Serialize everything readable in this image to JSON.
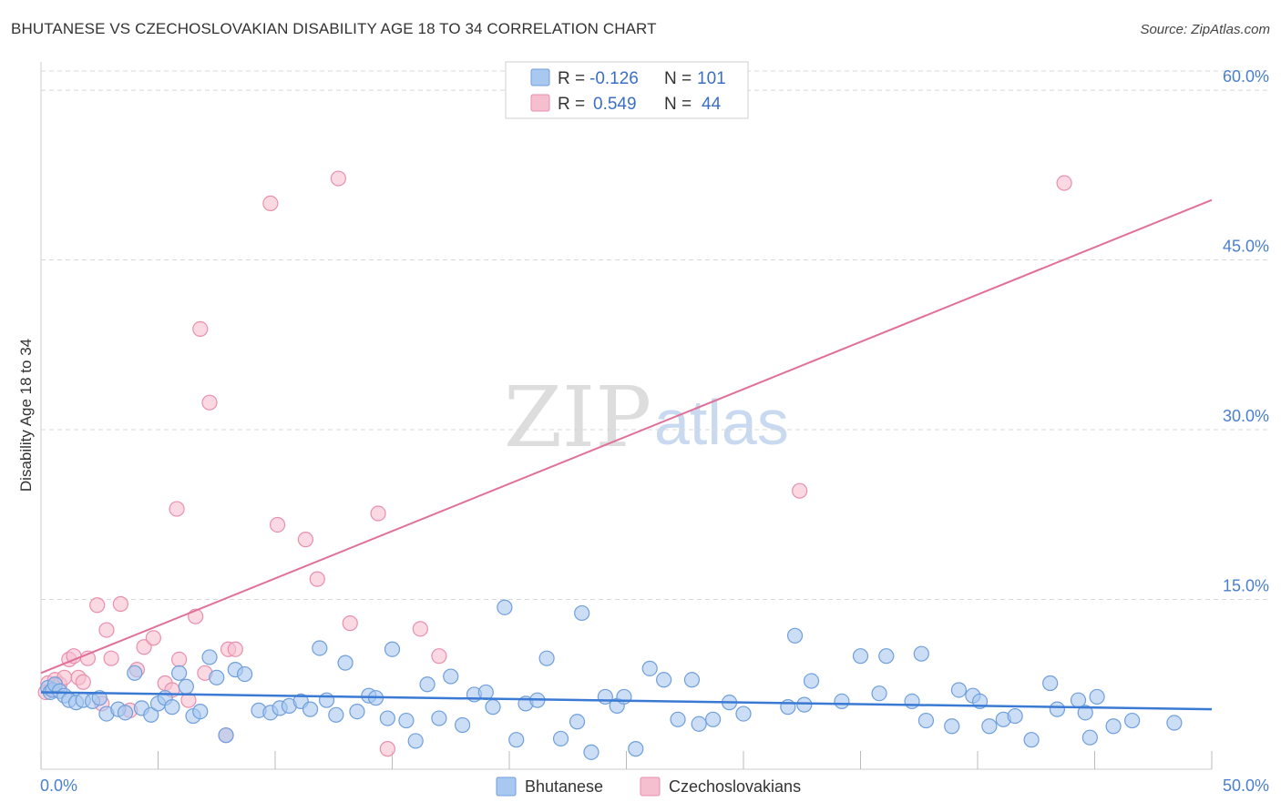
{
  "title": "BHUTANESE VS CZECHOSLOVAKIAN DISABILITY AGE 18 TO 34 CORRELATION CHART",
  "source": "Source: ZipAtlas.com",
  "watermark": {
    "zip": "ZIP",
    "atlas": "atlas"
  },
  "colors": {
    "blue_fill": "#a9c8ef",
    "blue_stroke": "#6f9fdc",
    "blue_line": "#3a7ad4",
    "pink_fill": "#f6bfd0",
    "pink_stroke": "#e98fae",
    "pink_line": "#e0709a",
    "grid": "#d8d8d8",
    "tick_text": "#4a7fcf"
  },
  "legend": {
    "rows": [
      {
        "r_label": "R = ",
        "r_value": "-0.126",
        "n_label": "N = ",
        "n_value": "101",
        "color": "blue"
      },
      {
        "r_label": "R = ",
        "r_value": "0.549",
        "n_label": "N = ",
        "n_value": "44",
        "color": "pink"
      }
    ]
  },
  "bottom_legend": {
    "items": [
      "Bhutanese",
      "Czechoslovakians"
    ]
  },
  "chart_data": {
    "type": "scatter",
    "title": "BHUTANESE VS CZECHOSLOVAKIAN DISABILITY AGE 18 TO 34 CORRELATION CHART",
    "xlabel": "",
    "ylabel": "Disability Age 18 to 34",
    "xlim": [
      0,
      50
    ],
    "ylim": [
      0,
      62.5
    ],
    "x_tick_labels": [
      "0.0%",
      "50.0%"
    ],
    "y_ticks": [
      15,
      30,
      45,
      60
    ],
    "y_tick_labels": [
      "15.0%",
      "30.0%",
      "45.0%",
      "60.0%"
    ],
    "series": [
      {
        "name": "Bhutanese",
        "color": "blue",
        "r": -0.126,
        "n": 101,
        "trend": {
          "x": [
            0,
            50
          ],
          "y": [
            6.8,
            5.3
          ]
        },
        "points": [
          [
            0.3,
            7.2
          ],
          [
            0.4,
            6.8
          ],
          [
            0.5,
            7.0
          ],
          [
            0.6,
            7.5
          ],
          [
            0.8,
            6.9
          ],
          [
            1.0,
            6.5
          ],
          [
            1.2,
            6.1
          ],
          [
            1.5,
            5.9
          ],
          [
            1.8,
            6.1
          ],
          [
            2.2,
            6.0
          ],
          [
            2.5,
            6.3
          ],
          [
            2.8,
            4.9
          ],
          [
            3.3,
            5.3
          ],
          [
            3.6,
            5.0
          ],
          [
            4.0,
            8.5
          ],
          [
            4.3,
            5.4
          ],
          [
            4.7,
            4.8
          ],
          [
            5.0,
            5.8
          ],
          [
            5.3,
            6.3
          ],
          [
            5.6,
            5.5
          ],
          [
            5.9,
            8.5
          ],
          [
            6.2,
            7.3
          ],
          [
            6.5,
            4.7
          ],
          [
            6.8,
            5.1
          ],
          [
            7.2,
            9.9
          ],
          [
            7.5,
            8.1
          ],
          [
            7.9,
            3.0
          ],
          [
            8.3,
            8.8
          ],
          [
            8.7,
            8.4
          ],
          [
            9.3,
            5.2
          ],
          [
            9.8,
            5.0
          ],
          [
            10.2,
            5.4
          ],
          [
            10.6,
            5.6
          ],
          [
            11.1,
            6.0
          ],
          [
            11.5,
            5.3
          ],
          [
            11.9,
            10.7
          ],
          [
            12.2,
            6.1
          ],
          [
            12.6,
            4.8
          ],
          [
            13.0,
            9.4
          ],
          [
            13.5,
            5.1
          ],
          [
            14.0,
            6.5
          ],
          [
            14.3,
            6.3
          ],
          [
            14.8,
            4.5
          ],
          [
            15.0,
            10.6
          ],
          [
            15.6,
            4.3
          ],
          [
            16.0,
            2.5
          ],
          [
            16.5,
            7.5
          ],
          [
            17.0,
            4.5
          ],
          [
            17.5,
            8.2
          ],
          [
            18.0,
            3.9
          ],
          [
            18.5,
            6.6
          ],
          [
            19.0,
            6.8
          ],
          [
            19.3,
            5.5
          ],
          [
            19.8,
            14.3
          ],
          [
            20.3,
            2.6
          ],
          [
            20.7,
            5.8
          ],
          [
            21.2,
            6.1
          ],
          [
            21.6,
            9.8
          ],
          [
            22.2,
            2.7
          ],
          [
            22.9,
            4.2
          ],
          [
            23.1,
            13.8
          ],
          [
            23.5,
            1.5
          ],
          [
            24.1,
            6.4
          ],
          [
            24.6,
            5.6
          ],
          [
            24.9,
            6.4
          ],
          [
            25.4,
            1.8
          ],
          [
            26.0,
            8.9
          ],
          [
            26.6,
            7.9
          ],
          [
            27.2,
            4.4
          ],
          [
            27.8,
            7.9
          ],
          [
            28.1,
            4.0
          ],
          [
            28.7,
            4.4
          ],
          [
            29.4,
            5.9
          ],
          [
            30.0,
            4.9
          ],
          [
            31.9,
            5.5
          ],
          [
            32.2,
            11.8
          ],
          [
            32.6,
            5.7
          ],
          [
            32.9,
            7.8
          ],
          [
            34.2,
            6.0
          ],
          [
            35.0,
            10.0
          ],
          [
            35.8,
            6.7
          ],
          [
            36.1,
            10.0
          ],
          [
            37.2,
            6.0
          ],
          [
            37.6,
            10.2
          ],
          [
            37.8,
            4.3
          ],
          [
            38.9,
            3.8
          ],
          [
            39.2,
            7.0
          ],
          [
            39.8,
            6.5
          ],
          [
            40.1,
            6.0
          ],
          [
            40.5,
            3.8
          ],
          [
            41.1,
            4.4
          ],
          [
            41.6,
            4.7
          ],
          [
            42.3,
            2.6
          ],
          [
            43.1,
            7.6
          ],
          [
            43.4,
            5.3
          ],
          [
            44.3,
            6.1
          ],
          [
            44.6,
            5.0
          ],
          [
            44.8,
            2.8
          ],
          [
            45.1,
            6.4
          ],
          [
            45.8,
            3.8
          ],
          [
            46.6,
            4.3
          ],
          [
            48.4,
            4.1
          ]
        ]
      },
      {
        "name": "Czechoslovakians",
        "color": "pink",
        "r": 0.549,
        "n": 44,
        "trend": {
          "x": [
            0,
            50
          ],
          "y": [
            8.5,
            50.3
          ]
        },
        "points": [
          [
            0.3,
            7.6
          ],
          [
            0.5,
            7.0
          ],
          [
            0.6,
            7.9
          ],
          [
            0.8,
            7.5
          ],
          [
            1.0,
            8.1
          ],
          [
            1.2,
            9.7
          ],
          [
            1.4,
            10.0
          ],
          [
            1.6,
            8.1
          ],
          [
            1.8,
            7.7
          ],
          [
            2.0,
            9.8
          ],
          [
            2.4,
            14.5
          ],
          [
            2.6,
            5.8
          ],
          [
            2.8,
            12.3
          ],
          [
            3.0,
            9.8
          ],
          [
            3.4,
            14.6
          ],
          [
            3.8,
            5.2
          ],
          [
            4.1,
            8.8
          ],
          [
            4.4,
            10.8
          ],
          [
            4.8,
            11.6
          ],
          [
            5.3,
            7.6
          ],
          [
            5.6,
            7.0
          ],
          [
            5.9,
            9.7
          ],
          [
            6.3,
            6.1
          ],
          [
            6.6,
            13.5
          ],
          [
            7.0,
            8.5
          ],
          [
            6.8,
            38.9
          ],
          [
            7.2,
            32.4
          ],
          [
            7.9,
            3.0
          ],
          [
            8.0,
            10.6
          ],
          [
            8.3,
            10.6
          ],
          [
            5.8,
            23.0
          ],
          [
            9.8,
            50.0
          ],
          [
            10.1,
            21.6
          ],
          [
            11.3,
            20.3
          ],
          [
            11.8,
            16.8
          ],
          [
            12.7,
            52.2
          ],
          [
            13.2,
            12.9
          ],
          [
            14.4,
            22.6
          ],
          [
            14.8,
            1.8
          ],
          [
            16.2,
            12.4
          ],
          [
            17.0,
            10.0
          ],
          [
            32.4,
            24.6
          ],
          [
            43.7,
            51.8
          ],
          [
            0.2,
            6.8
          ]
        ]
      }
    ]
  }
}
